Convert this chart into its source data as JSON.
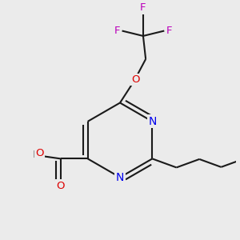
{
  "background_color": "#ebebeb",
  "atom_colors": {
    "N": "#0000ee",
    "O": "#dd0000",
    "F": "#bb00bb",
    "H": "#888888"
  },
  "bond_color": "#1a1a1a",
  "bond_width": 1.5,
  "dbo": 0.018
}
